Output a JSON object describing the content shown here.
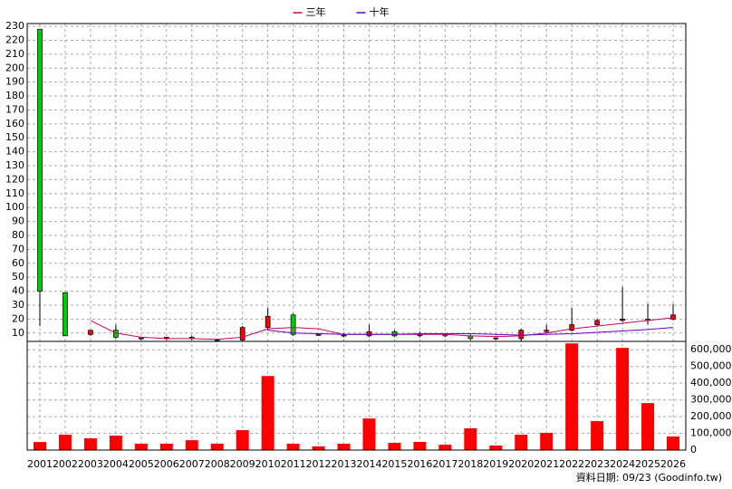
{
  "chart_data": [
    {
      "type": "candlestick",
      "open": [
        228,
        39,
        9,
        12,
        6,
        6,
        7,
        5,
        5,
        14,
        23,
        9,
        8,
        8,
        11,
        8,
        9,
        8,
        6,
        6,
        11,
        12,
        16,
        19,
        20,
        20
      ],
      "high": [
        228,
        39,
        12,
        16,
        7,
        7,
        8,
        6,
        15,
        28,
        24,
        10,
        10,
        16,
        12,
        11,
        10,
        9,
        7,
        13,
        16,
        28,
        20,
        43,
        31,
        31
      ],
      "low": [
        15,
        8,
        8,
        6,
        5,
        5,
        5,
        4,
        4,
        12,
        8,
        8,
        7,
        7,
        7,
        7,
        7,
        5,
        5,
        4,
        10,
        11,
        15,
        18,
        16,
        19
      ],
      "close": [
        40,
        8,
        12,
        7,
        6.5,
        7,
        6,
        4.5,
        14,
        22,
        9,
        8.5,
        8.5,
        11,
        8,
        9,
        8,
        6,
        6.5,
        12,
        12,
        16,
        19,
        20,
        19,
        23
      ],
      "up_color": "#ff0000",
      "down_color": "#00cc00",
      "series": [
        {
          "name": "三年",
          "color": "#cc0066",
          "values": [
            null,
            null,
            19,
            10,
            7,
            6,
            6,
            5.5,
            7,
            13,
            14,
            13,
            9,
            9,
            9,
            9,
            9,
            8,
            7.5,
            8,
            10,
            13,
            15,
            17,
            19,
            21
          ]
        },
        {
          "name": "十年",
          "color": "#6600cc",
          "values": [
            null,
            null,
            null,
            null,
            null,
            null,
            null,
            null,
            null,
            12,
            10,
            9.5,
            9,
            9,
            9,
            9.5,
            9.5,
            9.5,
            9,
            8.5,
            9,
            9.5,
            10.5,
            11.5,
            12.5,
            14
          ]
        }
      ],
      "ylim": [
        4,
        232
      ],
      "yticks": [
        10,
        20,
        30,
        40,
        50,
        60,
        70,
        80,
        90,
        100,
        110,
        120,
        130,
        140,
        150,
        160,
        170,
        180,
        190,
        200,
        210,
        220,
        230
      ],
      "grid": true,
      "legend": "top"
    },
    {
      "type": "bar",
      "categories": [
        "2001",
        "2002",
        "2003",
        "2004",
        "2005",
        "2006",
        "2007",
        "2008",
        "2009",
        "2010",
        "2011",
        "2012",
        "2013",
        "2014",
        "2015",
        "2016",
        "2017",
        "2018",
        "2019",
        "2020",
        "2021",
        "2022",
        "2023",
        "2024",
        "2025",
        "2026"
      ],
      "values": [
        48000,
        92000,
        70000,
        86000,
        38000,
        38000,
        59000,
        38000,
        119000,
        443000,
        38000,
        22000,
        38000,
        189000,
        43000,
        49000,
        32000,
        130000,
        27000,
        92000,
        103000,
        638000,
        173000,
        611000,
        281000,
        81000
      ],
      "color": "#ff0000",
      "ylim": [
        0,
        650000
      ],
      "yticks": [
        0,
        {
          "value": 100000,
          "label": "100,000"
        },
        {
          "value": 200000,
          "label": "200,000"
        },
        {
          "value": 300000,
          "label": "300,000"
        },
        {
          "value": 400000,
          "label": "400,000"
        },
        {
          "value": 500000,
          "label": "500,000"
        },
        {
          "value": 600000,
          "label": "600,000"
        }
      ],
      "grid": true
    }
  ],
  "footer": "資料日期: 09/23 (Goodinfo.tw)"
}
